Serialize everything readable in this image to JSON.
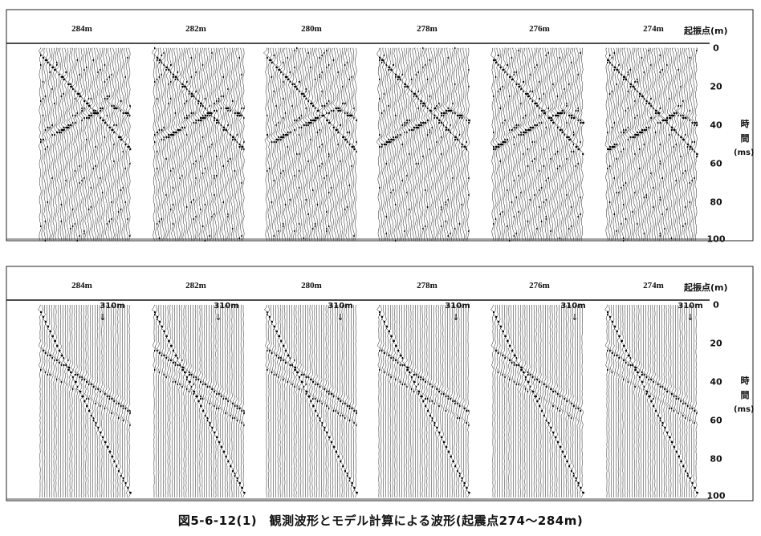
{
  "figure": {
    "caption": "図5-6-12(1)　観測波形とモデル計算による波形(起震点274～284m)",
    "source_label": "起振点(m)",
    "time_label_chars": [
      "時",
      "間"
    ],
    "time_unit": "(ms)",
    "time_ticks": [
      "0",
      "20",
      "40",
      "60",
      "80",
      "100"
    ],
    "time_range_ms": [
      0,
      100
    ],
    "marker_label": "310m",
    "marker_arrow": "↓"
  },
  "panels": [
    {
      "kind": "observed",
      "shots": [
        {
          "label": "284m",
          "value": 284
        },
        {
          "label": "282m",
          "value": 282
        },
        {
          "label": "280m",
          "value": 280
        },
        {
          "label": "278m",
          "value": 278
        },
        {
          "label": "276m",
          "value": 276
        },
        {
          "label": "274m",
          "value": 274
        }
      ]
    },
    {
      "kind": "model",
      "shots": [
        {
          "label": "284m",
          "value": 284
        },
        {
          "label": "282m",
          "value": 282
        },
        {
          "label": "280m",
          "value": 280
        },
        {
          "label": "278m",
          "value": 278
        },
        {
          "label": "276m",
          "value": 276
        },
        {
          "label": "274m",
          "value": 274
        }
      ]
    }
  ]
}
